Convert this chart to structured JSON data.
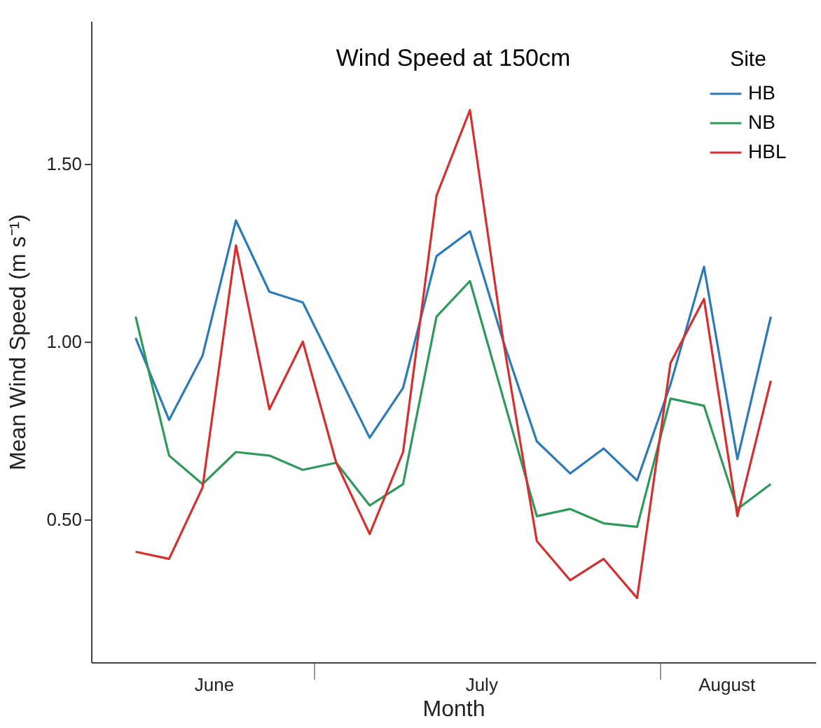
{
  "chart_data": {
    "type": "line",
    "title": "Wind Speed at 150cm",
    "xlabel": "Month",
    "ylabel": "Mean Wind Speed (m s⁻¹)",
    "legend_title": "Site",
    "legend": "top right",
    "grid": false,
    "x": [
      "--06-15",
      "--06-18",
      "--06-21",
      "--06-24",
      "--06-27",
      "--06-30",
      "--07-03",
      "--07-06",
      "--07-09",
      "--07-12",
      "--07-15",
      "--07-18",
      "--07-21",
      "--07-24",
      "--07-27",
      "--07-30",
      "--08-02",
      "--08-05",
      "--08-08",
      "--08-11"
    ],
    "xlim": [
      "--06-11",
      "--08-15"
    ],
    "xticks": [
      {
        "value": "--06-22",
        "label": "June"
      },
      {
        "value": "--07-01",
        "label": null
      },
      {
        "value": "--07-16",
        "label": "July"
      },
      {
        "value": "--08-01",
        "label": null
      },
      {
        "value": "--08-07",
        "label": "August"
      }
    ],
    "ylim": [
      0.1,
      1.9
    ],
    "yticks": [
      {
        "value": 0.5,
        "label": "0.50"
      },
      {
        "value": 1.0,
        "label": "1.00"
      },
      {
        "value": 1.5,
        "label": "1.50"
      }
    ],
    "series": [
      {
        "name": "HB",
        "color": "#2b7bba",
        "values": [
          1.01,
          0.78,
          0.96,
          1.34,
          1.14,
          1.11,
          0.92,
          0.73,
          0.87,
          1.24,
          1.31,
          1.0,
          0.72,
          0.63,
          0.7,
          0.61,
          0.88,
          1.21,
          0.67,
          1.07
        ]
      },
      {
        "name": "NB",
        "color": "#2e9a5a",
        "values": [
          1.07,
          0.68,
          0.6,
          0.69,
          0.68,
          0.64,
          0.66,
          0.54,
          0.6,
          1.07,
          1.17,
          0.84,
          0.51,
          0.53,
          0.49,
          0.48,
          0.84,
          0.82,
          0.53,
          0.6
        ]
      },
      {
        "name": "HBL",
        "color": "#d62f2f",
        "values": [
          0.41,
          0.39,
          0.59,
          1.27,
          0.81,
          1.0,
          0.66,
          0.46,
          0.69,
          1.41,
          1.65,
          1.0,
          0.44,
          0.33,
          0.39,
          0.28,
          0.94,
          1.12,
          0.51,
          0.89
        ]
      }
    ]
  }
}
